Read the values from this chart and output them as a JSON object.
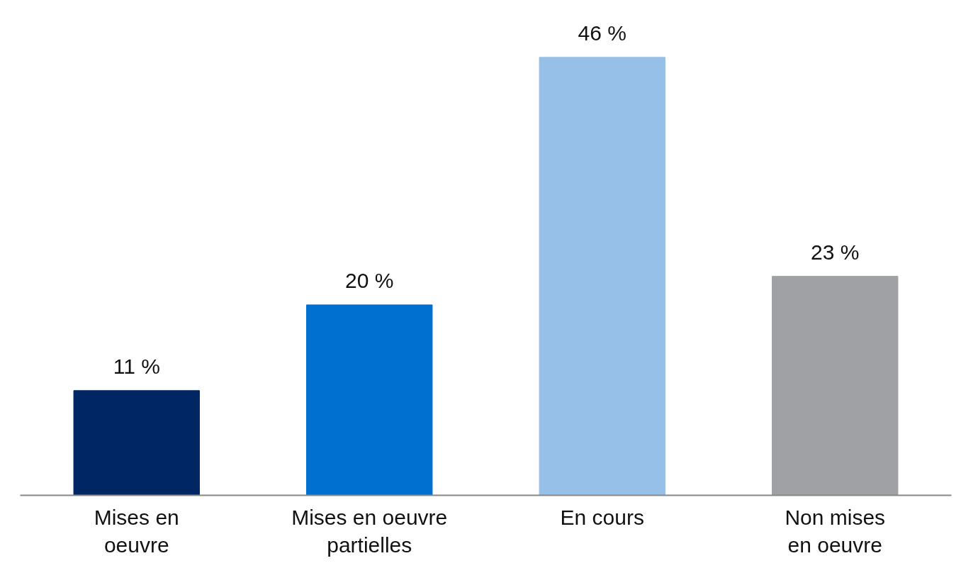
{
  "chart_data": {
    "type": "bar",
    "categories": [
      "Mises en\noeuvre",
      "Mises en oeuvre\npartielles",
      "En cours",
      "Non mises\nen oeuvre"
    ],
    "values": [
      11,
      20,
      46,
      23
    ],
    "colors": [
      "#002664",
      "#0070d0",
      "#96c0e8",
      "#a0a1a5"
    ],
    "value_labels": [
      "11 %",
      "20 %",
      "46 %",
      "23 %"
    ],
    "grid": false
  }
}
